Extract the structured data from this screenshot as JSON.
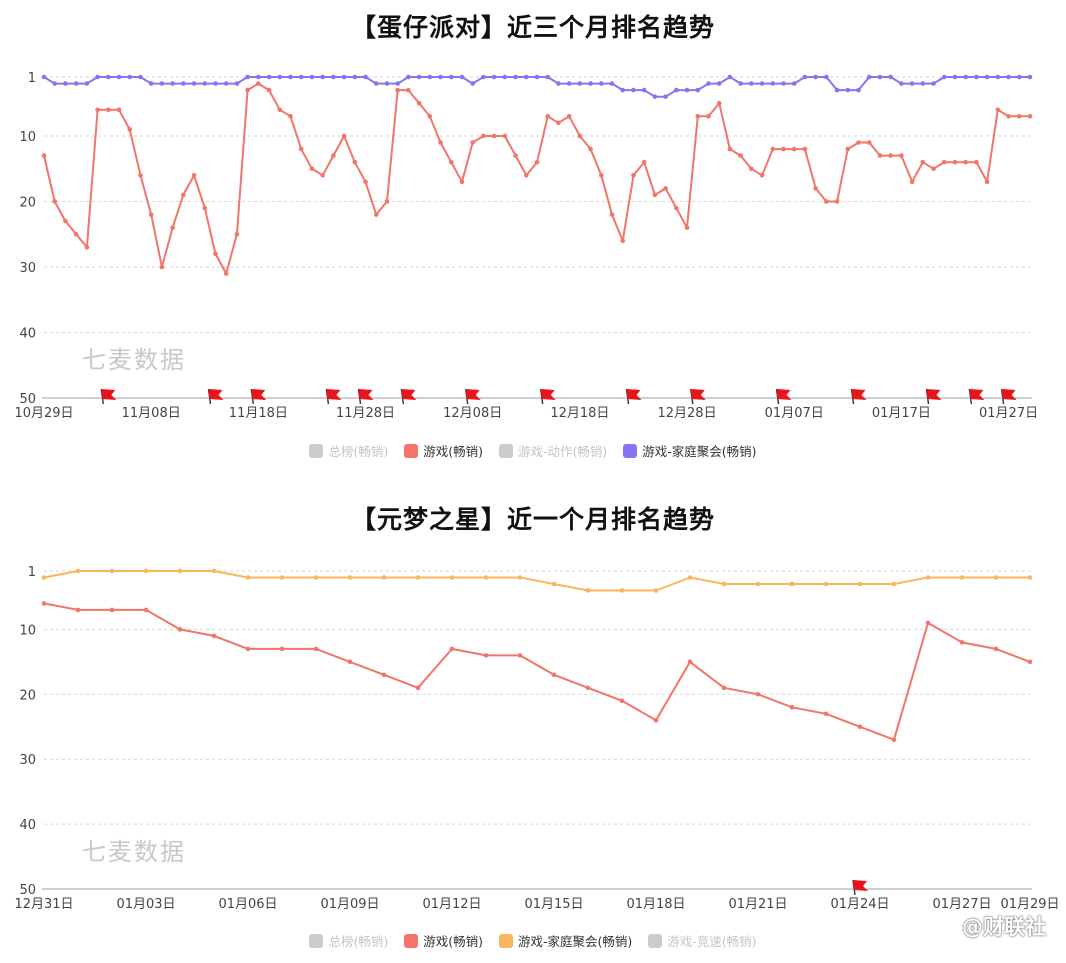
{
  "chart_data": [
    {
      "type": "line",
      "title": "【蛋仔派对】近三个月排名趋势",
      "y_inverted": true,
      "ylim": [
        1,
        50
      ],
      "y_ticks": [
        "1",
        "10",
        "20",
        "30",
        "40",
        "50"
      ],
      "x_tick_labels": [
        "10月29日",
        "11月08日",
        "11月18日",
        "11月28日",
        "12月08日",
        "12月18日",
        "12月28日",
        "01月07日",
        "01月17日",
        "01月27日"
      ],
      "x_dates": [
        "10月29日",
        "10月30日",
        "10月31日",
        "11月01日",
        "11月02日",
        "11月03日",
        "11月04日",
        "11月05日",
        "11月06日",
        "11月07日",
        "11月08日",
        "11月09日",
        "11月10日",
        "11月11日",
        "11月12日",
        "11月13日",
        "11月14日",
        "11月15日",
        "11月16日",
        "11月17日",
        "11月18日",
        "11月19日",
        "11月20日",
        "11月21日",
        "11月22日",
        "11月23日",
        "11月24日",
        "11月25日",
        "11月26日",
        "11月27日",
        "11月28日",
        "11月29日",
        "11月30日",
        "12月01日",
        "12月02日",
        "12月03日",
        "12月04日",
        "12月05日",
        "12月06日",
        "12月07日",
        "12月08日",
        "12月09日",
        "12月10日",
        "12月11日",
        "12月12日",
        "12月13日",
        "12月14日",
        "12月15日",
        "12月16日",
        "12月17日",
        "12月18日",
        "12月19日",
        "12月20日",
        "12月21日",
        "12月22日",
        "12月23日",
        "12月24日",
        "12月25日",
        "12月26日",
        "12月27日",
        "12月28日",
        "12月29日",
        "12月30日",
        "12月31日",
        "01月01日",
        "01月02日",
        "01月03日",
        "01月04日",
        "01月05日",
        "01月06日",
        "01月07日",
        "01月08日",
        "01月09日",
        "01月10日",
        "01月11日",
        "01月12日",
        "01月13日",
        "01月14日",
        "01月15日",
        "01月16日",
        "01月17日",
        "01月18日",
        "01月19日",
        "01月20日",
        "01月21日",
        "01月22日",
        "01月23日",
        "01月24日",
        "01月25日",
        "01月26日",
        "01月27日",
        "01月28日",
        "01月29日"
      ],
      "series": [
        {
          "name": "游戏(畅销)",
          "color": "#f2756a",
          "values": [
            13,
            20,
            23,
            25,
            27,
            6,
            6,
            6,
            9,
            16,
            22,
            30,
            24,
            19,
            16,
            21,
            28,
            31,
            25,
            3,
            2,
            3,
            6,
            7,
            12,
            15,
            16,
            13,
            10,
            14,
            17,
            22,
            20,
            3,
            3,
            5,
            7,
            11,
            14,
            17,
            11,
            10,
            10,
            10,
            13,
            16,
            14,
            7,
            8,
            7,
            10,
            12,
            16,
            22,
            26,
            16,
            14,
            19,
            18,
            21,
            24,
            7,
            7,
            5,
            12,
            13,
            15,
            16,
            12,
            12,
            12,
            12,
            18,
            20,
            20,
            12,
            11,
            11,
            13,
            13,
            13,
            17,
            14,
            15,
            14,
            14,
            14,
            14,
            17,
            6,
            7,
            7,
            7
          ]
        },
        {
          "name": "游戏-家庭聚会(畅销)",
          "color": "#8675f0",
          "values": [
            1,
            2,
            2,
            2,
            2,
            1,
            1,
            1,
            1,
            1,
            2,
            2,
            2,
            2,
            2,
            2,
            2,
            2,
            2,
            1,
            1,
            1,
            1,
            1,
            1,
            1,
            1,
            1,
            1,
            1,
            1,
            2,
            2,
            2,
            1,
            1,
            1,
            1,
            1,
            1,
            2,
            1,
            1,
            1,
            1,
            1,
            1,
            1,
            2,
            2,
            2,
            2,
            2,
            2,
            3,
            3,
            3,
            4,
            4,
            3,
            3,
            3,
            2,
            2,
            1,
            2,
            2,
            2,
            2,
            2,
            2,
            1,
            1,
            1,
            3,
            3,
            3,
            1,
            1,
            1,
            2,
            2,
            2,
            2,
            1,
            1,
            1,
            1,
            1,
            1,
            1,
            1,
            1
          ]
        }
      ],
      "event_flag_dates": [
        "11月04日",
        "11月14日",
        "11月18日",
        "11月25日",
        "11月28日",
        "12月02日",
        "12月08日",
        "12月15日",
        "12月23日",
        "12月29日",
        "01月06日",
        "01月13日",
        "01月20日",
        "01月24日",
        "01月27日"
      ],
      "legend": [
        {
          "label": "总榜(畅销)",
          "active": false,
          "color": "#cccccc"
        },
        {
          "label": "游戏(畅销)",
          "active": true,
          "color": "#f2756a"
        },
        {
          "label": "游戏-动作(畅销)",
          "active": false,
          "color": "#cccccc"
        },
        {
          "label": "游戏-家庭聚会(畅销)",
          "active": true,
          "color": "#8675f0"
        }
      ],
      "legend_position": "bottom-center",
      "grid": true
    },
    {
      "type": "line",
      "title": "【元梦之星】近一个月排名趋势",
      "y_inverted": true,
      "ylim": [
        1,
        50
      ],
      "y_ticks": [
        "1",
        "10",
        "20",
        "30",
        "40",
        "50"
      ],
      "x_tick_labels": [
        "12月31日",
        "01月03日",
        "01月06日",
        "01月09日",
        "01月12日",
        "01月15日",
        "01月18日",
        "01月21日",
        "01月24日",
        "01月27日",
        "01月29日"
      ],
      "x_dates": [
        "12月31日",
        "01月01日",
        "01月02日",
        "01月03日",
        "01月04日",
        "01月05日",
        "01月06日",
        "01月07日",
        "01月08日",
        "01月09日",
        "01月10日",
        "01月11日",
        "01月12日",
        "01月13日",
        "01月14日",
        "01月15日",
        "01月16日",
        "01月17日",
        "01月18日",
        "01月19日",
        "01月20日",
        "01月21日",
        "01月22日",
        "01月23日",
        "01月24日",
        "01月25日",
        "01月26日",
        "01月27日",
        "01月28日",
        "01月29日"
      ],
      "series": [
        {
          "name": "游戏(畅销)",
          "color": "#f2756a",
          "values": [
            6,
            7,
            7,
            7,
            10,
            11,
            13,
            13,
            13,
            15,
            17,
            19,
            13,
            14,
            14,
            17,
            19,
            21,
            24,
            15,
            19,
            20,
            22,
            23,
            25,
            27,
            9,
            12,
            13,
            15
          ]
        },
        {
          "name": "游戏-家庭聚会(畅销)",
          "color": "#fbb65c",
          "values": [
            2,
            1,
            1,
            1,
            1,
            1,
            2,
            2,
            2,
            2,
            2,
            2,
            2,
            2,
            2,
            3,
            4,
            4,
            4,
            2,
            3,
            3,
            3,
            3,
            3,
            3,
            2,
            2,
            2,
            2
          ]
        }
      ],
      "event_flag_dates": [
        "01月24日"
      ],
      "legend": [
        {
          "label": "总榜(畅销)",
          "active": false,
          "color": "#cccccc"
        },
        {
          "label": "游戏(畅销)",
          "active": true,
          "color": "#f2756a"
        },
        {
          "label": "游戏-家庭聚会(畅销)",
          "active": true,
          "color": "#fbb65c"
        },
        {
          "label": "游戏-竞速(畅销)",
          "active": false,
          "color": "#cccccc"
        }
      ],
      "legend_position": "bottom-center",
      "grid": true
    }
  ],
  "watermark": "七麦数据",
  "source_logo": "@财联社"
}
